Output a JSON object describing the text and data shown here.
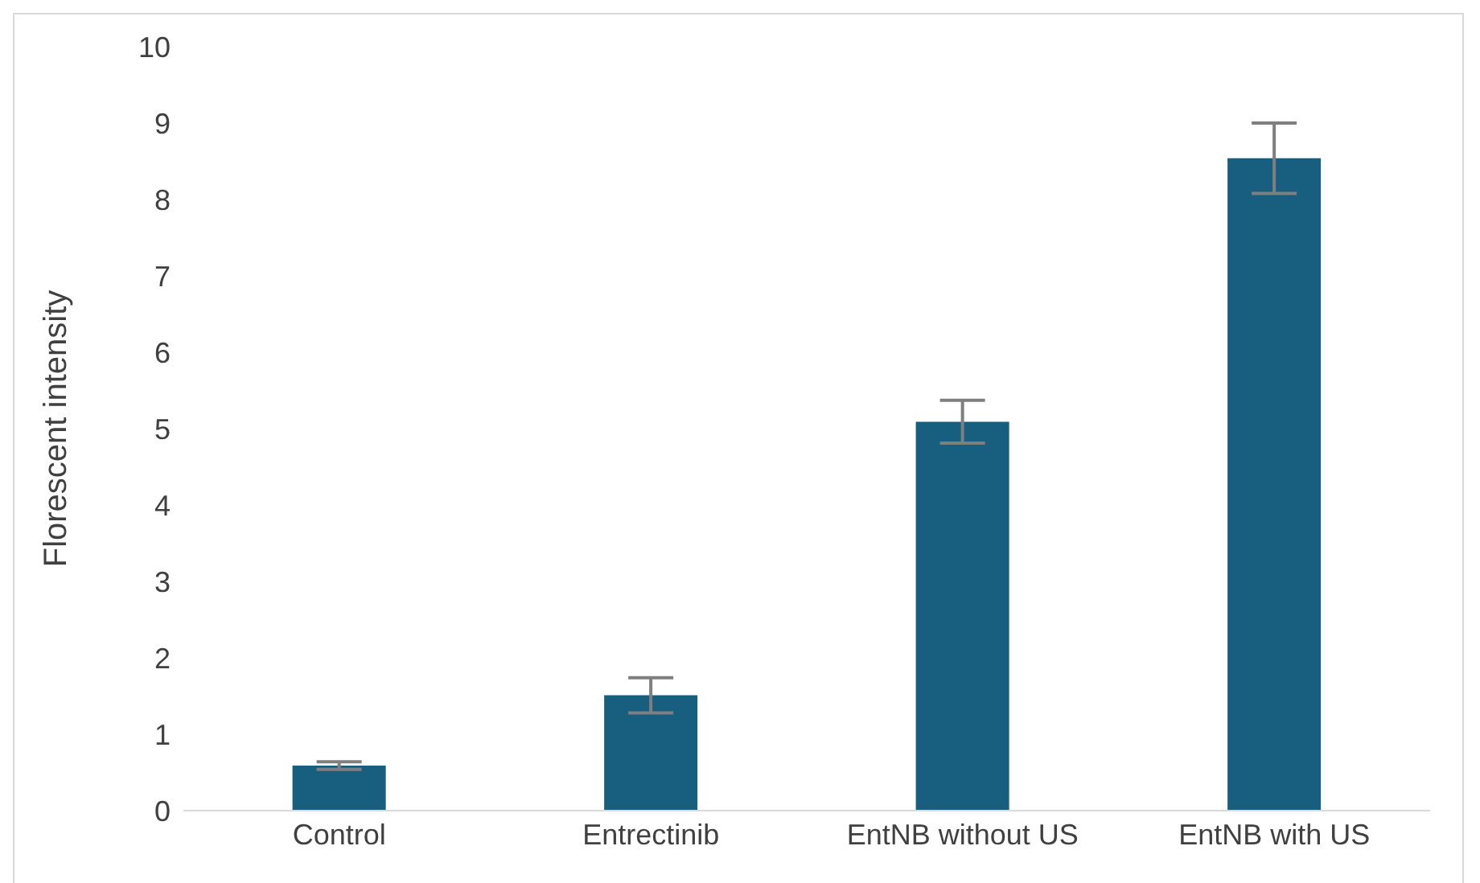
{
  "chart_data": {
    "type": "bar",
    "ylabel": "Florescent intensity",
    "categories": [
      "Control",
      "Entrectinib",
      "EntNB without US",
      "EntNB with US"
    ],
    "values": [
      0.59,
      1.51,
      5.09,
      8.54
    ],
    "errors": [
      0.05,
      0.23,
      0.28,
      0.46
    ],
    "color": "#175e7f",
    "ylim": [
      0,
      10
    ],
    "yticks": [
      0,
      1,
      2,
      3,
      4,
      5,
      6,
      7,
      8,
      9,
      10
    ],
    "grid": false
  }
}
